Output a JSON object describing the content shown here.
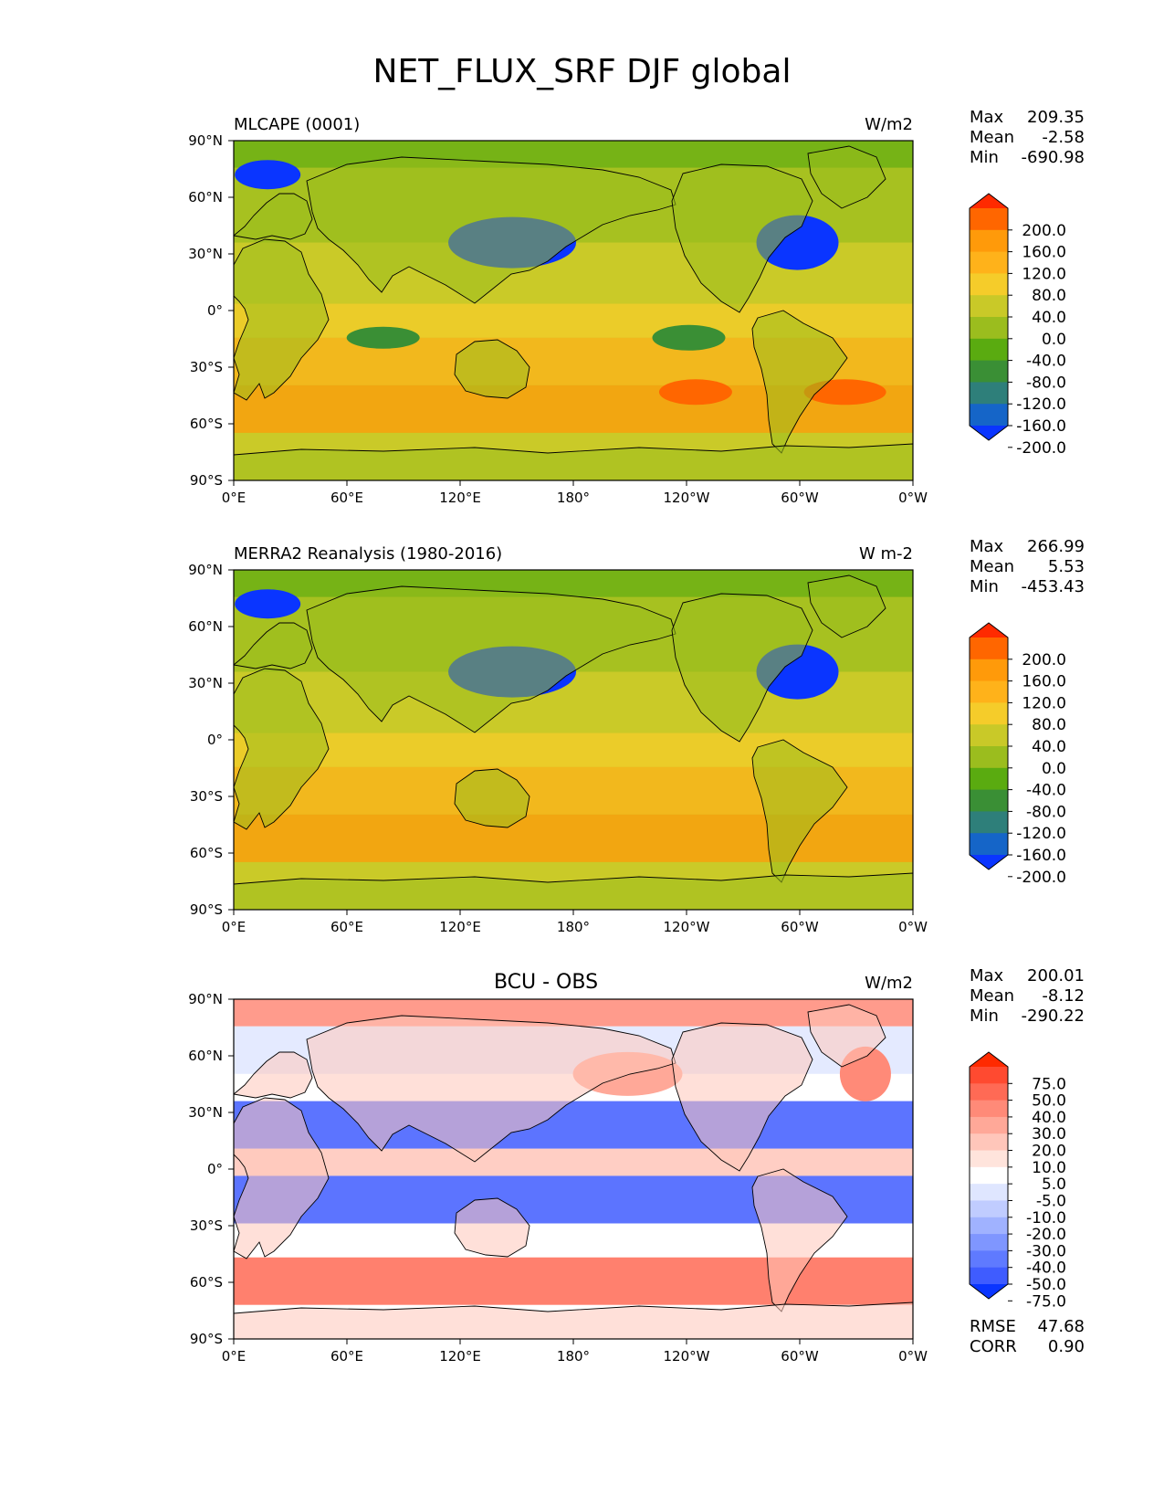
{
  "title": "NET_FLUX_SRF DJF global",
  "longitude_ticks": [
    "0°E",
    "60°E",
    "120°E",
    "180°",
    "120°W",
    "60°W",
    "0°W"
  ],
  "latitude_ticks": [
    "90°N",
    "60°N",
    "30°N",
    "0°",
    "30°S",
    "60°S",
    "90°S"
  ],
  "panels": [
    {
      "id": "test",
      "left_title": "MLCAPE (0001)",
      "center_title": "",
      "units": "W/m2",
      "stats": [
        {
          "label": "Max",
          "value": "209.35"
        },
        {
          "label": "Mean",
          "value": "-2.58"
        },
        {
          "label": "Min",
          "value": "-690.98"
        }
      ],
      "colorbar": {
        "levels": [
          "200.0",
          "160.0",
          "120.0",
          "80.0",
          "40.0",
          "0.0",
          "-40.0",
          "-80.0",
          "-120.0",
          "-160.0",
          "-200.0"
        ],
        "colors": [
          "#ff2a00",
          "#ff6600",
          "#ff9a0a",
          "#ffb21a",
          "#f5cc2a",
          "#c9c928",
          "#9bbd1e",
          "#5aab10",
          "#3a8f35",
          "#2e7f7a",
          "#1565c8",
          "#0a35ff"
        ]
      }
    },
    {
      "id": "reference",
      "left_title": "MERRA2 Reanalysis (1980-2016)",
      "center_title": "",
      "units": "W m-2",
      "stats": [
        {
          "label": "Max",
          "value": "266.99"
        },
        {
          "label": "Mean",
          "value": "5.53"
        },
        {
          "label": "Min",
          "value": "-453.43"
        }
      ],
      "colorbar": {
        "levels": [
          "200.0",
          "160.0",
          "120.0",
          "80.0",
          "40.0",
          "0.0",
          "-40.0",
          "-80.0",
          "-120.0",
          "-160.0",
          "-200.0"
        ],
        "colors": [
          "#ff2a00",
          "#ff6600",
          "#ff9a0a",
          "#ffb21a",
          "#f5cc2a",
          "#c9c928",
          "#9bbd1e",
          "#5aab10",
          "#3a8f35",
          "#2e7f7a",
          "#1565c8",
          "#0a35ff"
        ]
      }
    },
    {
      "id": "difference",
      "left_title": "",
      "center_title": "BCU - OBS",
      "units": "W/m2",
      "stats": [
        {
          "label": "Max",
          "value": "200.01"
        },
        {
          "label": "Mean",
          "value": "-8.12"
        },
        {
          "label": "Min",
          "value": "-290.22"
        }
      ],
      "extra_stats": [
        {
          "label": "RMSE",
          "value": "47.68"
        },
        {
          "label": "CORR",
          "value": "0.90"
        }
      ],
      "colorbar": {
        "levels": [
          "75.0",
          "50.0",
          "40.0",
          "30.0",
          "20.0",
          "10.0",
          "5.0",
          "-5.0",
          "-10.0",
          "-20.0",
          "-30.0",
          "-40.0",
          "-50.0",
          "-75.0"
        ],
        "colors": [
          "#ff2a00",
          "#ff4a30",
          "#ff6a55",
          "#ff8a78",
          "#ffa898",
          "#ffc6ba",
          "#ffe4dc",
          "#ffffff",
          "#dfe6ff",
          "#c0ccff",
          "#a0b2ff",
          "#7f96ff",
          "#5f7aff",
          "#3f5cff",
          "#0a35ff"
        ]
      }
    }
  ],
  "colors": {
    "ocean_test": "#c9c928",
    "ocean_reference": "#c9c928",
    "ocean_difference": "#ffffff",
    "coastline": "#000000"
  }
}
